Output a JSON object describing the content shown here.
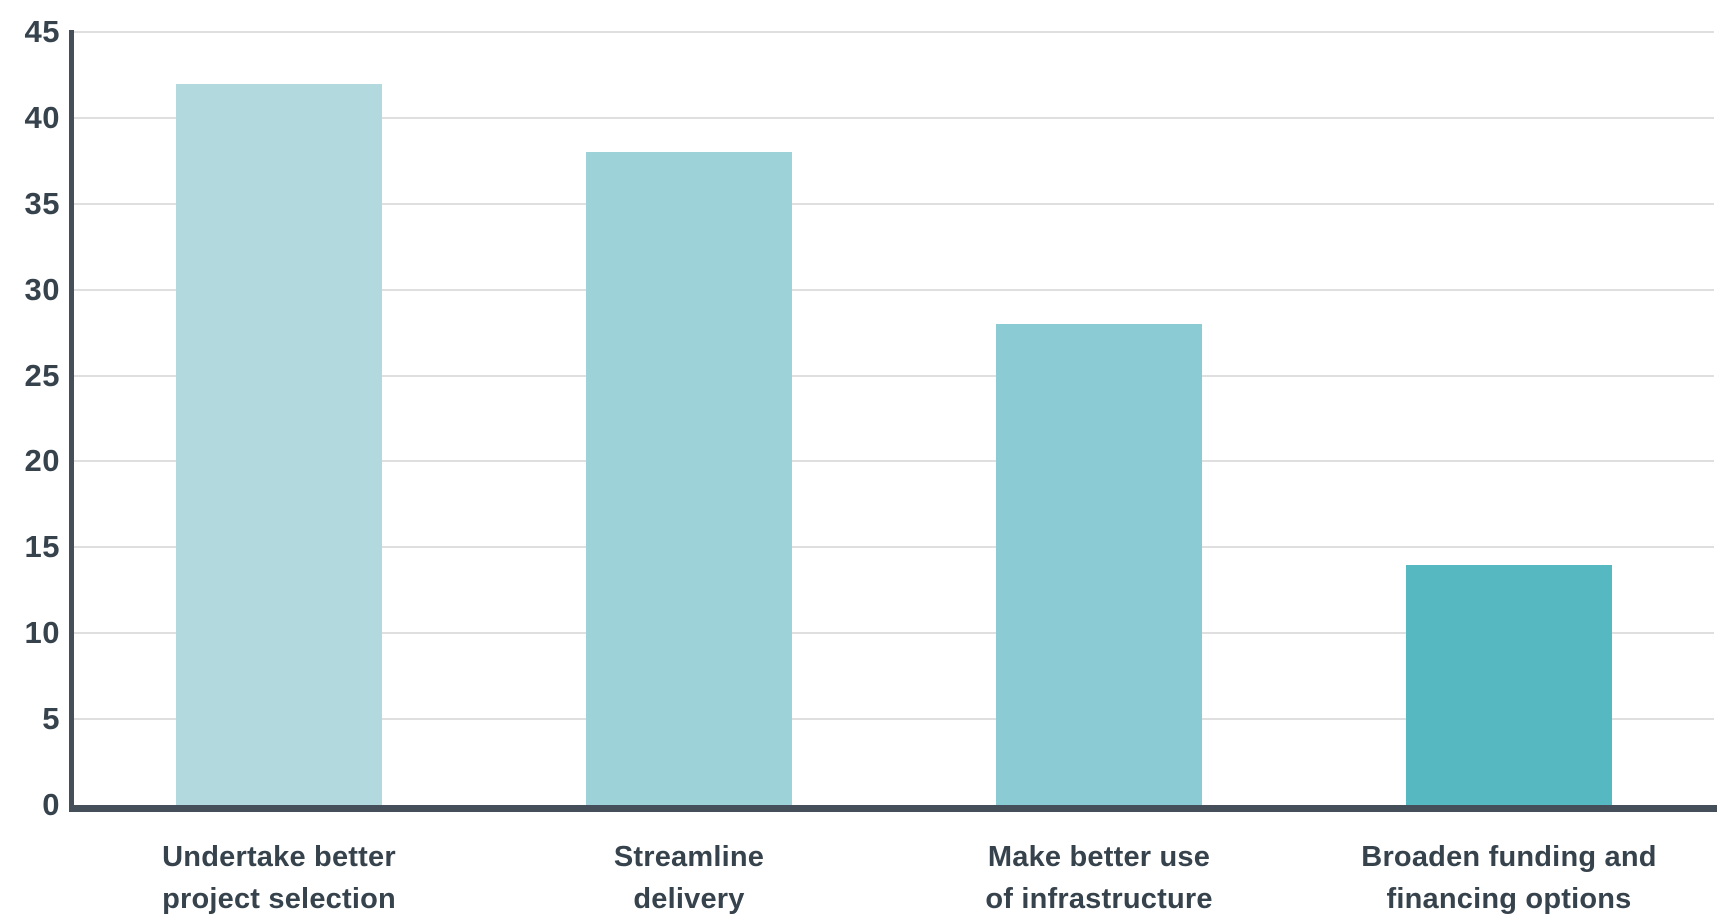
{
  "chart_data": {
    "type": "bar",
    "title": "",
    "xlabel": "",
    "ylabel": "",
    "categories": [
      "Undertake better\nproject selection",
      "Streamline\ndelivery",
      "Make better use\nof infrastructure",
      "Broaden funding and\nfinancing options"
    ],
    "values": [
      42,
      38,
      28,
      14
    ],
    "bar_colors": [
      "#b2d9de",
      "#9ed2d9",
      "#8bcbd3",
      "#56b9c2"
    ],
    "ylim": [
      0,
      45
    ],
    "yticks": [
      0,
      5,
      10,
      15,
      20,
      25,
      30,
      35,
      40,
      45
    ],
    "grid": true,
    "legend_position": "none"
  },
  "style": {
    "axis_color": "#454f59",
    "grid_color": "#dfdfdf",
    "text_color": "#36424c",
    "background": "#ffffff"
  }
}
